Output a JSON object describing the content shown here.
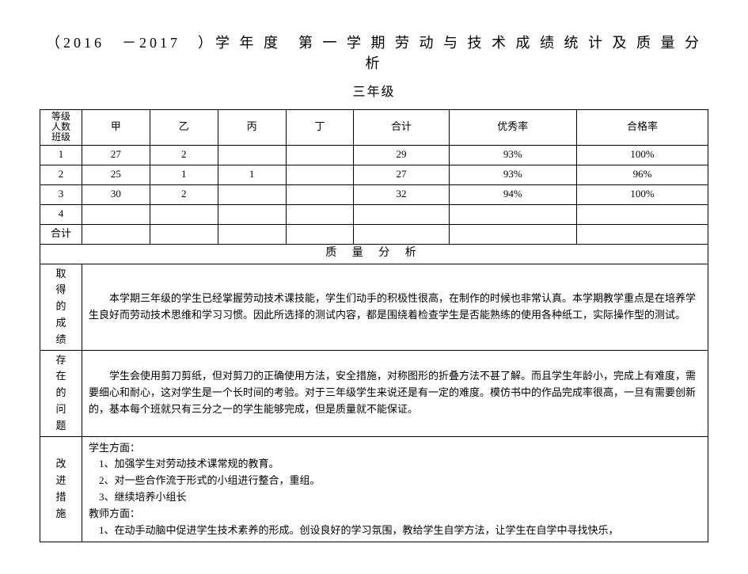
{
  "title": "（2016　－2017　）学 年 度　第 一 学 期 劳 动 与 技 术 成 绩 统 计 及 质 量 分 析",
  "subtitle": "三年级",
  "table": {
    "corner_top": "等级",
    "corner_mid": "人数",
    "corner_bottom": "班级",
    "columns": [
      "甲",
      "乙",
      "丙",
      "丁",
      "合计",
      "优秀率",
      "合格率"
    ],
    "rows": [
      {
        "label": "1",
        "cells": [
          "27",
          "2",
          "",
          "",
          "29",
          "93%",
          "100%"
        ]
      },
      {
        "label": "2",
        "cells": [
          "25",
          "1",
          "1",
          "",
          "27",
          "93%",
          "96%"
        ]
      },
      {
        "label": "3",
        "cells": [
          "30",
          "2",
          "",
          "",
          "32",
          "94%",
          "100%"
        ]
      },
      {
        "label": "4",
        "cells": [
          "",
          "",
          "",
          "",
          "",
          "",
          ""
        ]
      },
      {
        "label": "合计",
        "cells": [
          "",
          "",
          "",
          "",
          "",
          "",
          ""
        ]
      }
    ]
  },
  "analysis": {
    "header": "质 量 分 析",
    "sections": [
      {
        "label": "取\n得\n的\n成\n绩",
        "text": "　　本学期三年级的学生已经掌握劳动技术课技能，学生们动手的积极性很高，在制作的时候也非常认真。本学期教学重点是在培养学生良好而劳动技术思维和学习习惯。因此所选择的测试内容，都是围绕着检查学生是否能熟练的使用各种纸工，实际操作型的测试。"
      },
      {
        "label": "存\n在\n的\n问\n题",
        "text": "　　学生会使用剪刀剪纸，但对剪刀的正确使用方法，安全措施，对称图形的折叠方法不甚了解。而且学生年龄小，完成上有难度，需要细心和耐心，这对学生是一个长时间的考验。对于三年级学生来说还是有一定的难度。模仿书中的作品完成率很高，一旦有需要创新的，基本每个班就只有三分之一的学生能够完成，但是质量就不能保证。"
      },
      {
        "label": "改\n进\n措\n施",
        "lines": [
          "学生方面：",
          "　1、加强学生对劳动技术课常规的教育。",
          "　2、对一些合作流于形式的小组进行整合，重组。",
          "　3、继续培养小组长",
          "教师方面：",
          "　1、在动手动脑中促进学生技术素养的形成。创设良好的学习氛围，教给学生自学方法，让学生在自学中寻找快乐，"
        ]
      }
    ]
  },
  "style": {
    "background_color": "#ffffff",
    "text_color": "#000000",
    "border_color": "#000000",
    "title_fontsize": 18,
    "subtitle_fontsize": 16,
    "body_fontsize": 13
  }
}
